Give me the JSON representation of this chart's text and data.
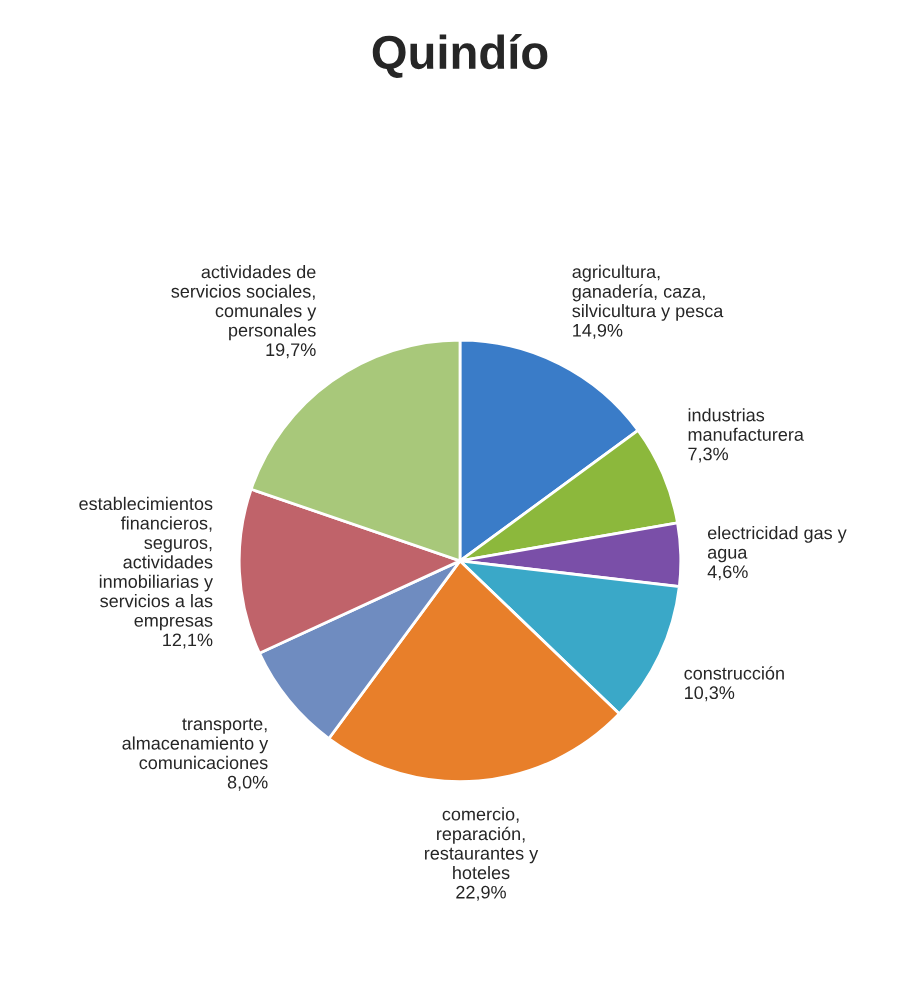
{
  "chart_data": {
    "type": "pie",
    "title": "Quindío",
    "categories": [
      "agricultura,\nganadería, caza,\nsilvicultura y pesca",
      "industrias\nmanufacturera",
      "electricidad gas y\nagua",
      "construcción",
      "comercio,\nreparación,\nrestaurantes y\nhoteles",
      "transporte,\nalmacenamiento y\ncomunicaciones",
      "establecimientos\nfinancieros,\nseguros,\nactividades\ninmobiliarias y\nservicios a las\nempresas",
      "actividades de\nservicios sociales,\ncomunales y\npersonales"
    ],
    "values": [
      14.9,
      7.3,
      4.6,
      10.3,
      22.9,
      8.0,
      12.1,
      19.7
    ],
    "value_labels": [
      "14,9%",
      "7,3%",
      "4,6%",
      "10,3%",
      "22,9%",
      "8,0%",
      "12,1%",
      "19,7%"
    ],
    "colors": [
      "#3a7cc8",
      "#8cb83c",
      "#7a4fa8",
      "#3aa8c8",
      "#e87f2a",
      "#6f8cc0",
      "#c0636a",
      "#a8c87a"
    ],
    "legend": false
  }
}
